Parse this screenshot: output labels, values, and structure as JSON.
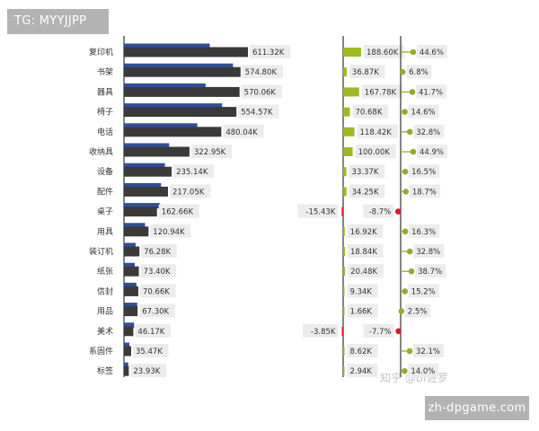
{
  "header_badge": "TG: MYYJJPP",
  "footer_badge": "zh-dpgame.com",
  "watermark": "知乎 @BI佐罗",
  "colors": {
    "current_bar": "#3a3a3a",
    "previous_bar": "#2e4e9e",
    "delta_positive": "#9cbb1e",
    "delta_negative": "#d7192b",
    "pct_positive": "#8fae2f",
    "axis": "#333333",
    "label_bg": "#ececec"
  },
  "chart_data": {
    "type": "bar",
    "categories": [
      "复印机",
      "书架",
      "器具",
      "椅子",
      "电话",
      "收纳具",
      "设备",
      "配件",
      "桌子",
      "用具",
      "装订机",
      "纸张",
      "信封",
      "用品",
      "美术",
      "系固件",
      "标签"
    ],
    "series": [
      {
        "values": [
          611.32,
          574.8,
          570.06,
          554.57,
          480.04,
          322.95,
          235.14,
          217.05,
          162.66,
          120.94,
          76.28,
          73.4,
          70.66,
          67.3,
          46.17,
          35.47,
          23.93
        ],
        "labels": [
          "611.32K",
          "574.80K",
          "570.06K",
          "554.57K",
          "480.04K",
          "322.95K",
          "235.14K",
          "217.05K",
          "162.66K",
          "120.94K",
          "76.28K",
          "73.40K",
          "70.66K",
          "67.30K",
          "46.17K",
          "35.47K",
          "23.93K"
        ]
      },
      {
        "values": [
          422.7,
          537.9,
          402.3,
          483.9,
          361.6,
          222.9,
          201.8,
          182.8,
          178.1,
          104.0,
          57.4,
          52.9,
          61.3,
          65.6,
          50.0,
          26.9,
          21.0
        ],
        "labels": []
      }
    ],
    "delta": {
      "values": [
        188.6,
        36.87,
        167.78,
        70.68,
        118.42,
        100.0,
        33.37,
        34.25,
        -15.43,
        16.92,
        18.84,
        20.48,
        9.34,
        1.66,
        -3.85,
        8.62,
        2.94
      ],
      "labels": [
        "188.60K",
        "36.87K",
        "167.78K",
        "70.68K",
        "118.42K",
        "100.00K",
        "33.37K",
        "34.25K",
        "-15.43K",
        "16.92K",
        "18.84K",
        "20.48K",
        "9.34K",
        "1.66K",
        "-3.85K",
        "8.62K",
        "2.94K"
      ]
    },
    "delta_pct": {
      "values": [
        44.6,
        6.8,
        41.7,
        14.6,
        32.8,
        44.9,
        16.5,
        18.7,
        -8.7,
        16.3,
        32.8,
        38.7,
        15.2,
        2.5,
        -7.7,
        32.1,
        14.0
      ],
      "labels": [
        "44.6%",
        "6.8%",
        "41.7%",
        "14.6%",
        "32.8%",
        "44.9%",
        "16.5%",
        "18.7%",
        "-8.7%",
        "16.3%",
        "32.8%",
        "38.7%",
        "15.2%",
        "2.5%",
        "-7.7%",
        "32.1%",
        "14.0%"
      ]
    },
    "xlabel": "",
    "ylabel": "",
    "grid": false
  }
}
